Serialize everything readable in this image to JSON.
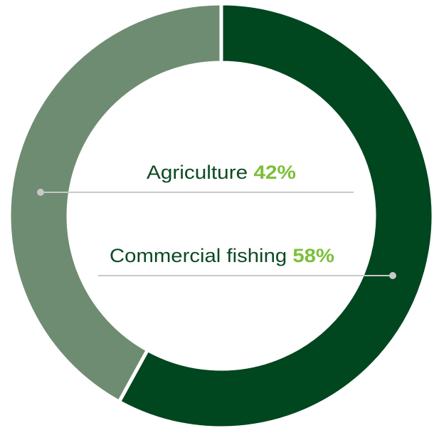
{
  "chart_data": {
    "type": "pie",
    "style": "donut",
    "slices": [
      {
        "label": "Commercial fishing",
        "value": 58,
        "value_label": "58%",
        "color": "#00461f"
      },
      {
        "label": "Agriculture",
        "value": 42,
        "value_label": "42%",
        "color": "#6e8c71"
      }
    ],
    "label_color": "#0d4a22",
    "value_label_color": "#7cbf3a",
    "leader_color": "#c8c8c8",
    "background": "#ffffff"
  }
}
